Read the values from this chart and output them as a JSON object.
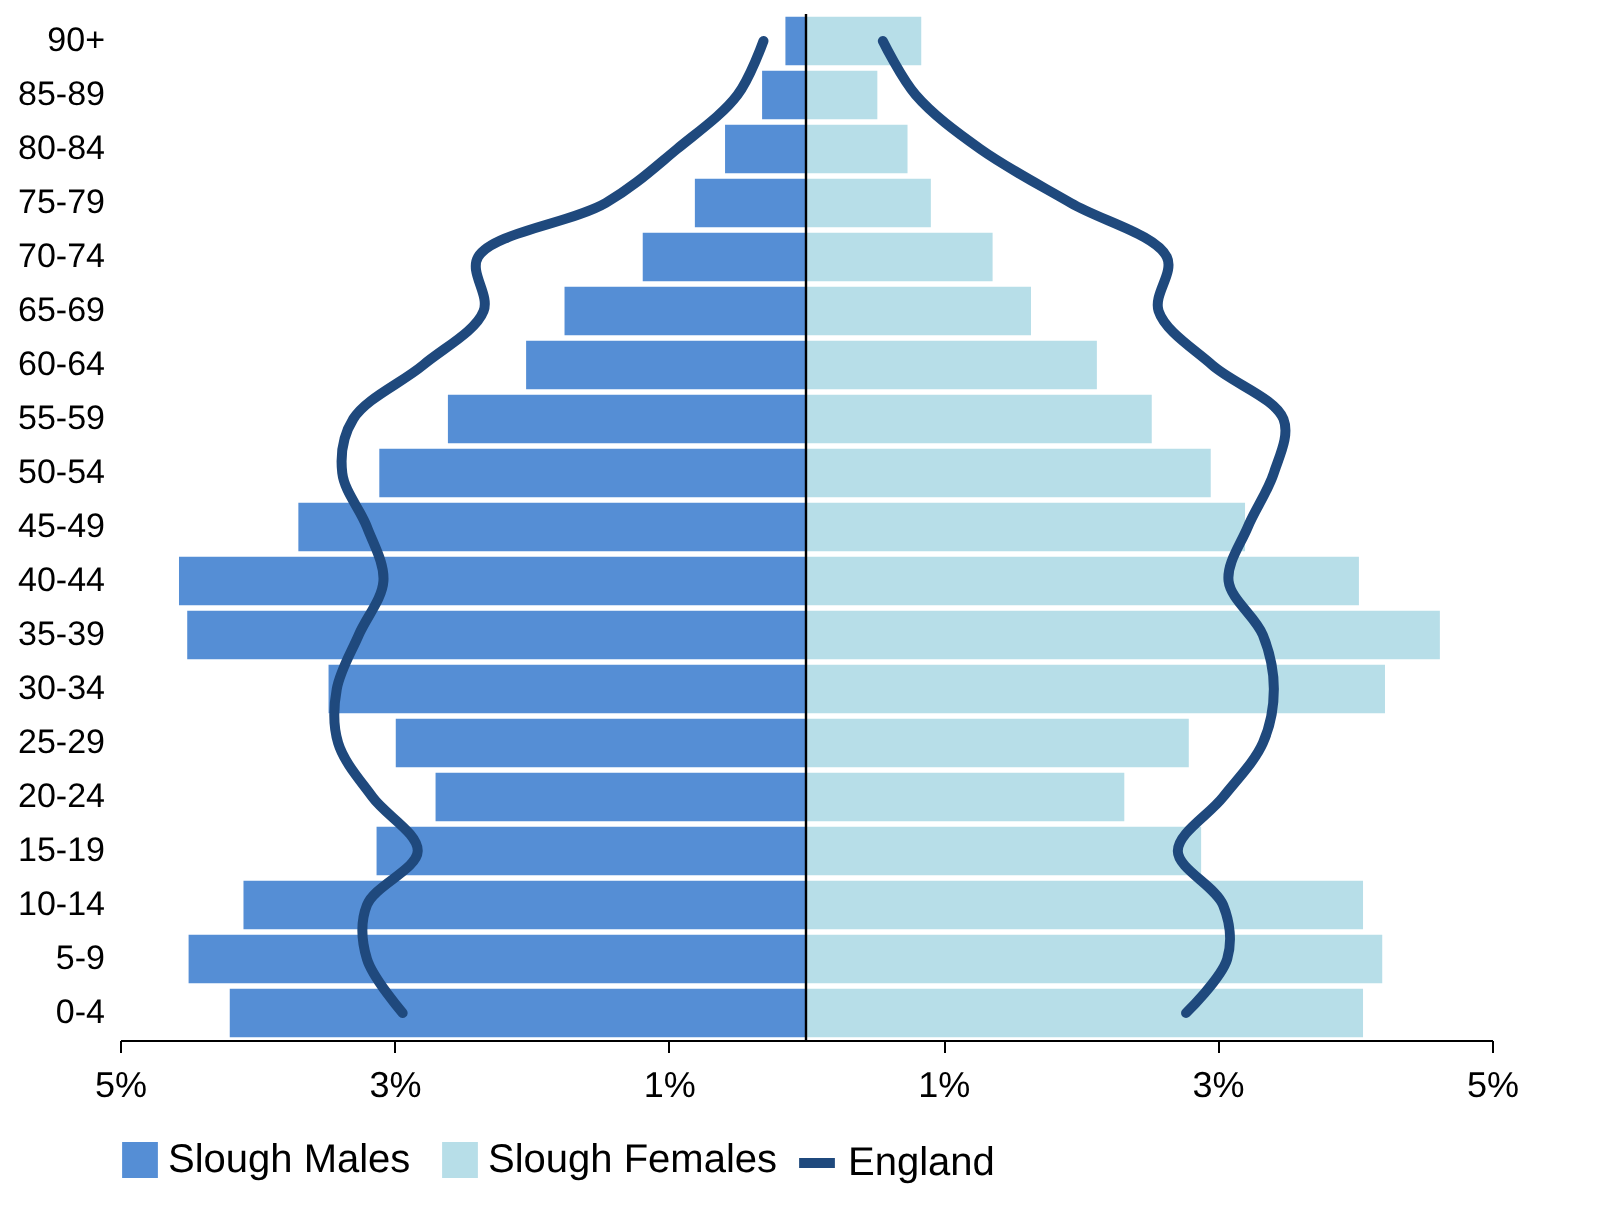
{
  "chart_data": {
    "type": "bar",
    "orientation": "horizontal",
    "stacked": true,
    "categories": [
      "90+",
      "85-89",
      "80-84",
      "75-79",
      "70-74",
      "65-69",
      "60-64",
      "55-59",
      "50-54",
      "45-49",
      "40-44",
      "35-39",
      "30-34",
      "25-29",
      "20-24",
      "15-19",
      "10-14",
      "5-9",
      "0-4"
    ],
    "series": [
      {
        "name": "Slough Males",
        "color": "#558ed5",
        "values": [
          -0.15,
          -0.32,
          -0.59,
          -0.81,
          -1.19,
          -1.76,
          -2.04,
          -2.61,
          -3.11,
          -3.7,
          -4.57,
          -4.51,
          -3.48,
          -2.99,
          -2.7,
          -3.13,
          -4.1,
          -4.5,
          -4.2
        ]
      },
      {
        "name": "Slough Females",
        "color": "#b7dee8",
        "values": [
          0.84,
          0.52,
          0.74,
          0.91,
          1.36,
          1.64,
          2.12,
          2.52,
          2.95,
          3.2,
          4.03,
          4.62,
          4.22,
          2.79,
          2.32,
          2.88,
          4.06,
          4.2,
          4.06
        ]
      },
      {
        "name": "England",
        "type": "line",
        "color": "#1f497d",
        "values": [
          0.56,
          0.8,
          1.27,
          1.93,
          2.63,
          2.57,
          2.96,
          3.48,
          3.41,
          3.22,
          3.08,
          3.33,
          3.41,
          3.33,
          3.04,
          2.71,
          3.04,
          3.07,
          2.77
        ]
      },
      {
        "type": "line",
        "color": "#1f497d",
        "values": [
          -0.31,
          -0.5,
          -0.94,
          -1.46,
          -2.39,
          -2.35,
          -2.79,
          -3.3,
          -3.38,
          -3.2,
          -3.08,
          -3.26,
          -3.42,
          -3.41,
          -3.16,
          -2.83,
          -3.2,
          -3.2,
          -2.94
        ]
      }
    ],
    "xlim": [
      -5,
      5
    ],
    "xticks": [
      {
        "value": -5,
        "label": "5%"
      },
      {
        "value": -3,
        "label": "3%"
      },
      {
        "value": -1,
        "label": "1%"
      },
      {
        "value": 1,
        "label": "1%"
      },
      {
        "value": 3,
        "label": "3%"
      },
      {
        "value": 5,
        "label": "5%"
      }
    ],
    "ref_lines": [
      {
        "axis": "x",
        "value": 0
      }
    ],
    "legend": "bottom",
    "grid": false,
    "marker": "none",
    "line_style": "solid"
  }
}
